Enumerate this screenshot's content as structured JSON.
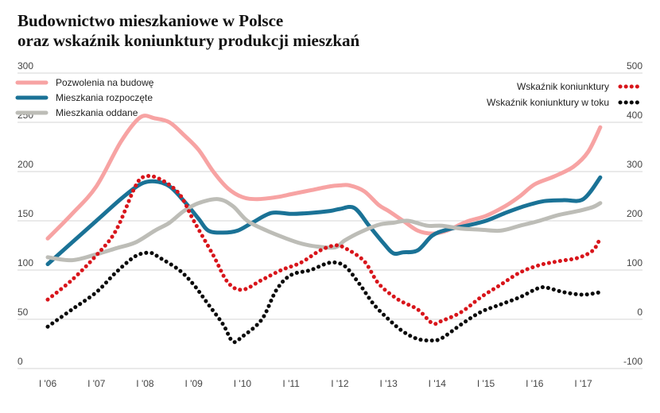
{
  "title_line1": "Budownictwo mieszkaniowe w Polsce",
  "title_line2": "oraz wskaźnik koniunktury produkcji mieszkań",
  "colors": {
    "pozwolenia": "#f7a3a3",
    "rozpoczete": "#1a7296",
    "oddane": "#bdbdb7",
    "wskaznik": "#d8151b",
    "wskaznik_w_toku": "#0a0a0a",
    "grid": "#d6d6d6"
  },
  "chart_data": {
    "type": "line",
    "categories": [
      "I '06",
      "I '07",
      "I '08",
      "I '09",
      "I '10",
      "I '11",
      "I '12",
      "I '13",
      "I '14",
      "I '15",
      "I '16",
      "I '17"
    ],
    "x_range": [
      2006.0,
      2017.4
    ],
    "y_left": {
      "ticks": [
        "300",
        "250",
        "200",
        "150",
        "100",
        "50",
        "0"
      ],
      "range": [
        0,
        300
      ]
    },
    "y_right": {
      "ticks": [
        "500",
        "400",
        "300",
        "200",
        "100",
        "0",
        "-100"
      ],
      "range": [
        -100,
        500
      ]
    },
    "grid": true,
    "legend_left": [
      "Pozwolenia na budowę",
      "Mieszkania rozpoczęte",
      "Mieszkania oddane"
    ],
    "legend_right": [
      "Wskaźnik koniunktury",
      "Wskaźnik koniunktury w toku"
    ],
    "series": [
      {
        "name": "Pozwolenia na budowę",
        "axis": "left",
        "style": "solid",
        "color_key": "pozwolenia",
        "x": [
          2006.0,
          2006.5,
          2007.0,
          2007.5,
          2007.9,
          2008.2,
          2008.5,
          2008.8,
          2009.1,
          2009.4,
          2009.7,
          2010.0,
          2010.3,
          2010.7,
          2011.0,
          2011.4,
          2011.8,
          2012.0,
          2012.2,
          2012.5,
          2012.8,
          2013.0,
          2013.3,
          2013.6,
          2013.9,
          2014.2,
          2014.6,
          2015.0,
          2015.4,
          2015.7,
          2016.0,
          2016.4,
          2016.8,
          2017.1,
          2017.35
        ],
        "y": [
          132,
          157,
          185,
          230,
          255,
          254,
          250,
          237,
          222,
          200,
          183,
          174,
          172,
          174,
          177,
          181,
          185,
          186,
          186,
          180,
          166,
          160,
          150,
          140,
          137,
          140,
          149,
          155,
          165,
          175,
          187,
          195,
          205,
          220,
          245
        ]
      },
      {
        "name": "Mieszkania rozpoczęte",
        "axis": "left",
        "style": "solid",
        "color_key": "rozpoczete",
        "x": [
          2006.0,
          2006.5,
          2007.0,
          2007.5,
          2007.9,
          2008.2,
          2008.5,
          2008.8,
          2009.1,
          2009.3,
          2009.6,
          2009.9,
          2010.2,
          2010.6,
          2011.0,
          2011.4,
          2011.8,
          2012.0,
          2012.3,
          2012.6,
          2012.9,
          2013.1,
          2013.3,
          2013.6,
          2013.9,
          2014.2,
          2014.6,
          2015.0,
          2015.4,
          2015.8,
          2016.2,
          2016.6,
          2017.0,
          2017.35
        ],
        "y": [
          106,
          128,
          150,
          172,
          187,
          190,
          185,
          170,
          152,
          140,
          138,
          140,
          148,
          158,
          157,
          158,
          160,
          162,
          163,
          145,
          127,
          117,
          118,
          120,
          135,
          141,
          145,
          150,
          158,
          165,
          170,
          171,
          172,
          194
        ]
      },
      {
        "name": "Mieszkania oddane",
        "axis": "left",
        "style": "solid",
        "color_key": "oddane",
        "x": [
          2006.0,
          2006.5,
          2007.0,
          2007.4,
          2007.8,
          2008.2,
          2008.5,
          2008.8,
          2009.1,
          2009.5,
          2009.8,
          2010.1,
          2010.5,
          2010.9,
          2011.2,
          2011.5,
          2011.9,
          2012.1,
          2012.4,
          2012.8,
          2013.1,
          2013.4,
          2013.8,
          2014.1,
          2014.5,
          2014.9,
          2015.3,
          2015.7,
          2016.1,
          2016.5,
          2016.9,
          2017.2,
          2017.35
        ],
        "y": [
          113,
          110,
          116,
          122,
          128,
          140,
          148,
          160,
          168,
          172,
          165,
          150,
          140,
          132,
          127,
          124,
          123,
          130,
          138,
          146,
          148,
          150,
          145,
          145,
          142,
          141,
          140,
          145,
          150,
          156,
          160,
          164,
          168
        ]
      },
      {
        "name": "Wskaźnik koniunktury",
        "axis": "right",
        "style": "dotted",
        "color_key": "wskaznik",
        "x": [
          2006.0,
          2006.5,
          2007.0,
          2007.4,
          2007.8,
          2008.0,
          2008.3,
          2008.7,
          2009.0,
          2009.4,
          2009.7,
          2010.0,
          2010.4,
          2010.8,
          2011.2,
          2011.6,
          2011.9,
          2012.1,
          2012.5,
          2012.8,
          2013.2,
          2013.6,
          2013.9,
          2014.1,
          2014.5,
          2014.9,
          2015.3,
          2015.7,
          2016.1,
          2016.5,
          2016.9,
          2017.2,
          2017.35
        ],
        "y": [
          40,
          80,
          130,
          180,
          270,
          290,
          285,
          255,
          200,
          130,
          75,
          60,
          80,
          100,
          115,
          140,
          150,
          145,
          118,
          72,
          40,
          20,
          -8,
          -3,
          15,
          45,
          70,
          95,
          110,
          118,
          125,
          140,
          165
        ]
      },
      {
        "name": "Wskaźnik koniunktury w toku",
        "axis": "right",
        "style": "dotted",
        "color_key": "wskaznik_w_toku",
        "x": [
          2006.0,
          2006.5,
          2007.0,
          2007.4,
          2007.8,
          2008.1,
          2008.3,
          2008.7,
          2009.0,
          2009.3,
          2009.6,
          2009.8,
          2010.0,
          2010.4,
          2010.7,
          2011.0,
          2011.4,
          2011.8,
          2012.1,
          2012.4,
          2012.7,
          2013.0,
          2013.3,
          2013.6,
          2013.9,
          2014.1,
          2014.5,
          2014.9,
          2015.3,
          2015.7,
          2016.0,
          2016.2,
          2016.6,
          2017.0,
          2017.35
        ],
        "y": [
          -15,
          20,
          55,
          95,
          128,
          135,
          125,
          100,
          70,
          30,
          -10,
          -45,
          -35,
          0,
          60,
          90,
          100,
          115,
          108,
          72,
          30,
          0,
          -25,
          -40,
          -43,
          -38,
          -10,
          15,
          30,
          45,
          60,
          65,
          55,
          50,
          55
        ]
      }
    ]
  }
}
